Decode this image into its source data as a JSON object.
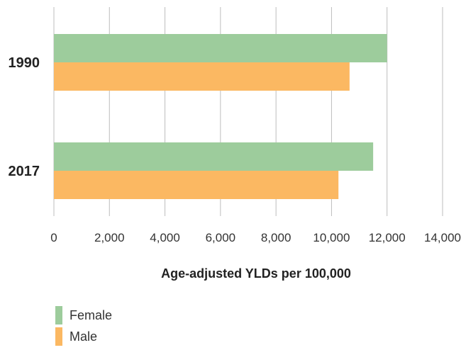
{
  "chart_data": {
    "type": "bar",
    "orientation": "horizontal",
    "categories": [
      "1990",
      "2017"
    ],
    "series": [
      {
        "name": "Female",
        "values": [
          12000,
          11500
        ],
        "color": "#9dcc9c"
      },
      {
        "name": "Male",
        "values": [
          10650,
          10250
        ],
        "color": "#fbb862"
      }
    ],
    "xlabel": "Age-adjusted YLDs per 100,000",
    "xlim": [
      0,
      14000
    ],
    "xticks": [
      0,
      2000,
      4000,
      6000,
      8000,
      10000,
      12000,
      14000
    ],
    "xtick_labels": [
      "0",
      "2,000",
      "4,000",
      "6,000",
      "8,000",
      "10,000",
      "12,000",
      "14,000"
    ],
    "grid": "vertical",
    "legend": "bottom-left"
  }
}
